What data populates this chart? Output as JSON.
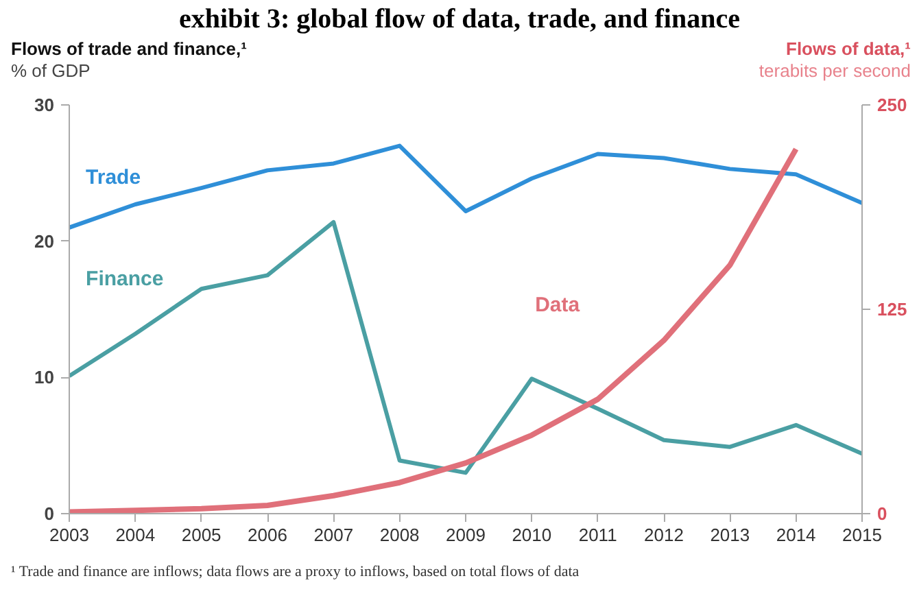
{
  "chart_data": {
    "type": "line",
    "title": "exhibit 3: global flow of data, trade, and finance",
    "ylabel": "Flows of trade and finance,¹\n% of GDP",
    "y2label": "Flows of data,¹\nterabits per second",
    "x": [
      2003,
      2004,
      2005,
      2006,
      2007,
      2008,
      2009,
      2010,
      2011,
      2012,
      2013,
      2014,
      2015
    ],
    "xlim": [
      2003,
      2015
    ],
    "xticks": [
      2003,
      2004,
      2005,
      2006,
      2007,
      2008,
      2009,
      2010,
      2011,
      2012,
      2013,
      2014,
      2015
    ],
    "ylim": [
      0,
      30
    ],
    "yticks": [
      0,
      10,
      20,
      30
    ],
    "y2lim": [
      0,
      250
    ],
    "y2ticks": [
      0,
      125,
      250
    ],
    "grid": false,
    "marker": "none",
    "line_style": "solid",
    "series": [
      {
        "name": "Trade",
        "color": "#2f8fd8",
        "values": [
          21.0,
          22.7,
          23.9,
          25.2,
          25.7,
          27.0,
          22.2,
          24.6,
          26.4,
          26.1,
          25.3,
          24.9,
          22.8
        ]
      },
      {
        "name": "Finance",
        "color": "#4a9fa3",
        "values": [
          10.1,
          13.2,
          16.5,
          17.5,
          21.4,
          3.9,
          3.0,
          9.9,
          7.7,
          5.4,
          4.9,
          6.5,
          4.4
        ]
      },
      {
        "name": "Data",
        "color": "#e0707a",
        "axis": "y2",
        "values": [
          1,
          2,
          3,
          5,
          11,
          19,
          31,
          48,
          70,
          106,
          152,
          223,
          null
        ]
      }
    ],
    "annotations": [
      "¹ Trade and finance are inflows; data flows are a proxy to inflows, based on total flows of data"
    ]
  }
}
